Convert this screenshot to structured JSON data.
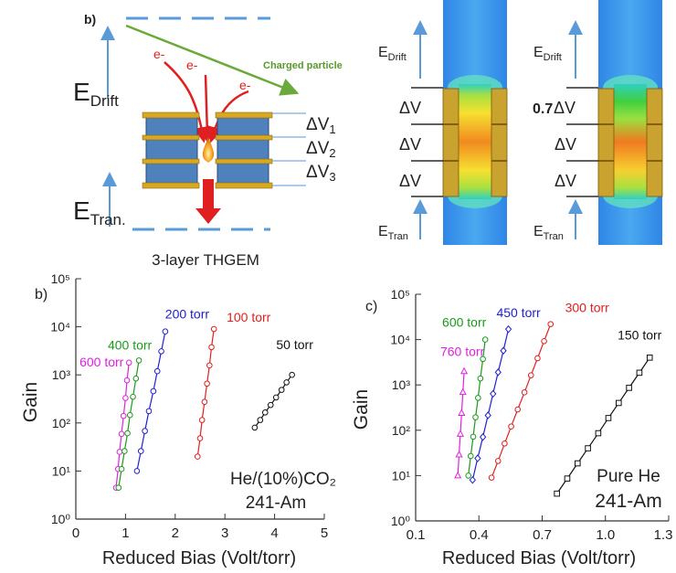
{
  "diagram": {
    "panel_label": "b)",
    "schematic": {
      "e_drift": {
        "main": "E",
        "sub": "Drift"
      },
      "electrons": [
        "e-",
        "e-",
        "e-"
      ],
      "particle": "Charged particle",
      "delta_v": [
        {
          "main": "ΔV",
          "sub": "1"
        },
        {
          "main": "ΔV",
          "sub": "2"
        },
        {
          "main": "ΔV",
          "sub": "3"
        }
      ],
      "e_tran": {
        "main": "E",
        "sub": "Tran."
      },
      "caption": "3-layer THGEM"
    },
    "field_maps": [
      {
        "e_drift": {
          "main": "E",
          "sub": "Drift"
        },
        "delta_v": [
          "ΔV",
          "ΔV",
          "ΔV"
        ],
        "e_tran": {
          "main": "E",
          "sub": "Tran"
        }
      },
      {
        "e_drift": {
          "main": "E",
          "sub": "Drift"
        },
        "factor": "0.7",
        "delta_v": [
          "ΔV",
          "ΔV",
          "ΔV"
        ],
        "e_tran": {
          "main": "E",
          "sub": "Tran"
        }
      }
    ]
  },
  "chart_data": [
    {
      "type": "line",
      "panel_label": "b)",
      "x_label": "Reduced Bias (Volt/torr)",
      "y_label": "Gain",
      "annotations": [
        "He/(10%)CO₂",
        "241-Am"
      ],
      "log_y": true,
      "xlim": [
        0,
        5
      ],
      "xticks": [
        0,
        1,
        2,
        3,
        4,
        5
      ],
      "ylim": [
        1,
        100000
      ],
      "yticks": [
        {
          "value": 1,
          "label": "10⁰"
        },
        {
          "value": 10,
          "label": "10¹"
        },
        {
          "value": 100,
          "label": "10²"
        },
        {
          "value": 1000,
          "label": "10³"
        },
        {
          "value": 10000,
          "label": "10⁴"
        },
        {
          "value": 100000,
          "label": "10⁵"
        }
      ],
      "series": [
        {
          "name": "600 torr",
          "color": "#e020e0",
          "marker": "circle",
          "x": [
            0.81,
            0.85,
            0.88,
            0.92,
            0.96,
            1.0,
            1.03,
            1.07
          ],
          "values": [
            4.5,
            11,
            25,
            59,
            140,
            330,
            770,
            1800
          ]
        },
        {
          "name": "400 torr",
          "color": "#1a9a1a",
          "marker": "circle",
          "x": [
            0.86,
            0.92,
            0.98,
            1.04,
            1.09,
            1.15,
            1.21,
            1.27
          ],
          "values": [
            4.5,
            11,
            26,
            61,
            146,
            350,
            840,
            2000
          ]
        },
        {
          "name": "200 torr",
          "color": "#2020d0",
          "marker": "circle",
          "x": [
            1.23,
            1.31,
            1.39,
            1.47,
            1.56,
            1.64,
            1.72,
            1.8
          ],
          "values": [
            10,
            26,
            68,
            176,
            457,
            1190,
            3090,
            8000
          ]
        },
        {
          "name": "100 torr",
          "color": "#e02020",
          "marker": "circle",
          "x": [
            2.45,
            2.5,
            2.54,
            2.59,
            2.64,
            2.69,
            2.73,
            2.78
          ],
          "values": [
            20,
            48,
            115,
            275,
            658,
            1575,
            3770,
            9000
          ]
        },
        {
          "name": "50 torr",
          "color": "#111111",
          "marker": "circle",
          "x": [
            3.6,
            3.71,
            3.81,
            3.92,
            4.03,
            4.14,
            4.24,
            4.35
          ],
          "values": [
            80,
            115,
            165,
            236,
            339,
            487,
            698,
            1000
          ]
        }
      ]
    },
    {
      "type": "line",
      "panel_label": "c)",
      "x_label": "Reduced Bias (Volt/torr)",
      "y_label": "Gain",
      "annotations": [
        "Pure He",
        "241-Am"
      ],
      "log_y": true,
      "xlim": [
        0.1,
        1.3
      ],
      "xticks": [
        0.1,
        0.4,
        0.7,
        {
          "value": 1,
          "label": "1.0"
        },
        1.3
      ],
      "ylim": [
        1,
        100000
      ],
      "yticks": [
        {
          "value": 1,
          "label": "10⁰"
        },
        {
          "value": 10,
          "label": "10¹"
        },
        {
          "value": 100,
          "label": "10²"
        },
        {
          "value": 1000,
          "label": "10³"
        },
        {
          "value": 10000,
          "label": "10⁴"
        },
        {
          "value": 100000,
          "label": "10⁵"
        }
      ],
      "series": [
        {
          "name": "760 torr",
          "color": "#e020e0",
          "marker": "triangle",
          "x": [
            0.3,
            0.306,
            0.312,
            0.318,
            0.324,
            0.33
          ],
          "values": [
            10,
            29,
            83,
            240,
            693,
            2000
          ]
        },
        {
          "name": "600 torr",
          "color": "#1a9a1a",
          "marker": "circle",
          "x": [
            0.35,
            0.361,
            0.373,
            0.384,
            0.396,
            0.407,
            0.419,
            0.43
          ],
          "values": [
            10,
            27,
            72,
            193,
            518,
            1389,
            3728,
            10000
          ]
        },
        {
          "name": "450 torr",
          "color": "#2020d0",
          "marker": "diamond",
          "x": [
            0.37,
            0.394,
            0.419,
            0.443,
            0.467,
            0.491,
            0.516,
            0.54
          ],
          "values": [
            8,
            24,
            71,
            213,
            637,
            1900,
            5690,
            17000
          ]
        },
        {
          "name": "300 torr",
          "color": "#e02020",
          "marker": "circle",
          "x": [
            0.46,
            0.491,
            0.522,
            0.553,
            0.584,
            0.616,
            0.647,
            0.678,
            0.709,
            0.74
          ],
          "values": [
            9,
            21,
            51,
            121,
            288,
            686,
            1630,
            3880,
            9240,
            22000
          ]
        },
        {
          "name": "150 torr",
          "color": "#111111",
          "marker": "square",
          "x": [
            0.77,
            0.819,
            0.868,
            0.917,
            0.966,
            1.014,
            1.063,
            1.112,
            1.161,
            1.21
          ],
          "values": [
            4,
            8.6,
            18.6,
            40,
            86,
            186,
            400,
            862,
            1857,
            4000
          ]
        }
      ]
    }
  ]
}
